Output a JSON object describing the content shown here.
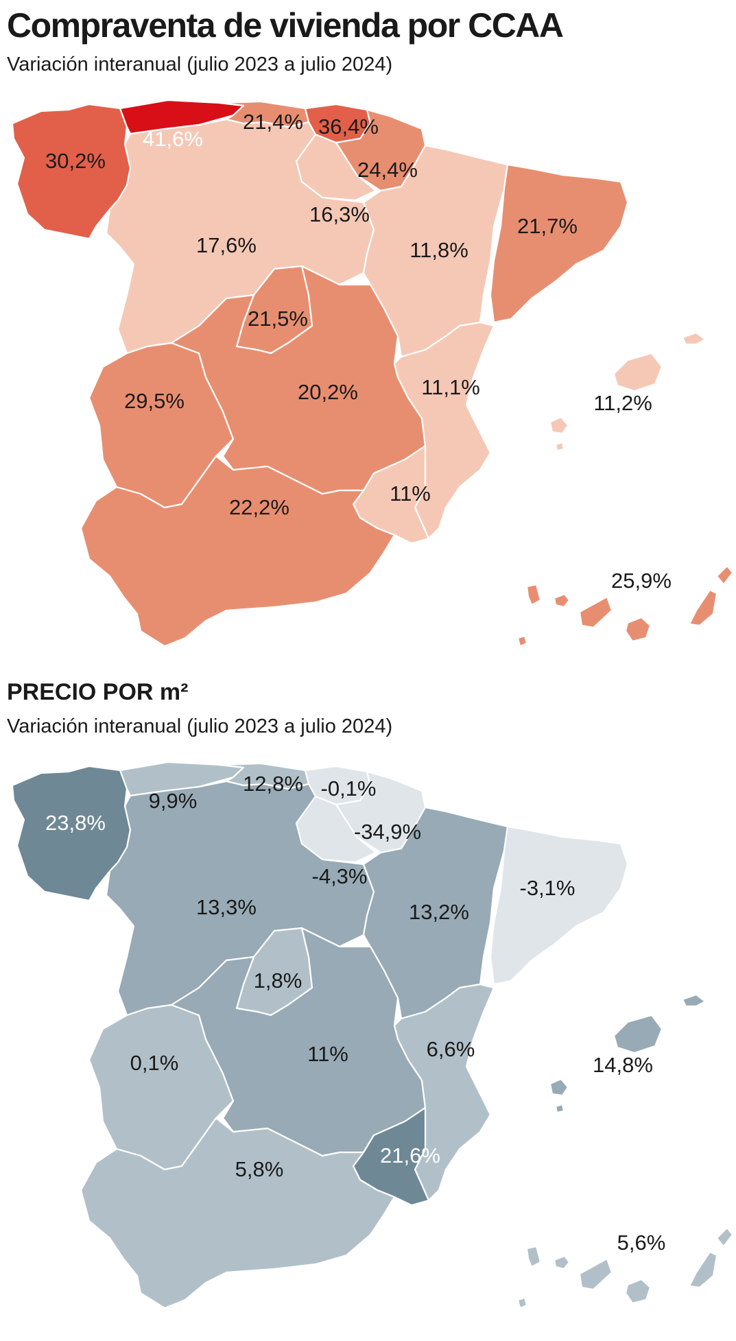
{
  "header": {
    "title": "Compraventa de vivienda por CCAA",
    "subtitle": "Variación interanual (julio 2023 a julio 2024)"
  },
  "section2": {
    "title": "PRECIO POR m²",
    "subtitle": "Variación interanual (julio 2023 a julio 2024)"
  },
  "compraventa": [
    {
      "region": "Galicia",
      "value": "30,2%",
      "color": "#e2604a"
    },
    {
      "region": "Asturias",
      "value": "41,6%",
      "color": "#d80f17"
    },
    {
      "region": "Cantabria",
      "value": "21,4%",
      "color": "#e88e70"
    },
    {
      "region": "País Vasco",
      "value": "36,4%",
      "color": "#e2604a"
    },
    {
      "region": "Navarra",
      "value": "24,4%",
      "color": "#e88e70"
    },
    {
      "region": "La Rioja",
      "value": "16,3%",
      "color": "#f5c8b6"
    },
    {
      "region": "Castilla y León",
      "value": "17,6%",
      "color": "#f5c8b6"
    },
    {
      "region": "Aragón",
      "value": "11,8%",
      "color": "#f5c8b6"
    },
    {
      "region": "Cataluña",
      "value": "21,7%",
      "color": "#e88e70"
    },
    {
      "region": "Madrid",
      "value": "21,5%",
      "color": "#e88e70"
    },
    {
      "region": "Extremadura",
      "value": "29,5%",
      "color": "#e88e70"
    },
    {
      "region": "Castilla-La Mancha",
      "value": "20,2%",
      "color": "#e88e70"
    },
    {
      "region": "Comunidad Valenciana",
      "value": "11,1%",
      "color": "#f5c8b6"
    },
    {
      "region": "Illes Balears",
      "value": "11,2%",
      "color": "#f5c8b6"
    },
    {
      "region": "Murcia",
      "value": "11%",
      "color": "#f5c8b6"
    },
    {
      "region": "Andalucía",
      "value": "22,2%",
      "color": "#e88e70"
    },
    {
      "region": "Canarias",
      "value": "25,9%",
      "color": "#e88e70"
    }
  ],
  "precio": [
    {
      "region": "Galicia",
      "value": "23,8%",
      "color": "#6e8896"
    },
    {
      "region": "Asturias",
      "value": "9,9%",
      "color": "#b1c0c8"
    },
    {
      "region": "Cantabria",
      "value": "12,8%",
      "color": "#b1c0c8"
    },
    {
      "region": "País Vasco",
      "value": "-0,1%",
      "color": "#dfe5e9"
    },
    {
      "region": "Navarra",
      "value": "-34,9%",
      "color": "#dfe5e9"
    },
    {
      "region": "La Rioja",
      "value": "-4,3%",
      "color": "#dfe5e9"
    },
    {
      "region": "Castilla y León",
      "value": "13,3%",
      "color": "#97aab5"
    },
    {
      "region": "Aragón",
      "value": "13,2%",
      "color": "#97aab5"
    },
    {
      "region": "Cataluña",
      "value": "-3,1%",
      "color": "#dfe5e9"
    },
    {
      "region": "Madrid",
      "value": "1,8%",
      "color": "#b1c0c8"
    },
    {
      "region": "Extremadura",
      "value": "0,1%",
      "color": "#b1c0c8"
    },
    {
      "region": "Castilla-La Mancha",
      "value": "11%",
      "color": "#97aab5"
    },
    {
      "region": "Comunidad Valenciana",
      "value": "6,6%",
      "color": "#b1c0c8"
    },
    {
      "region": "Illes Balears",
      "value": "14,8%",
      "color": "#97aab5"
    },
    {
      "region": "Murcia",
      "value": "21,6%",
      "color": "#6e8896"
    },
    {
      "region": "Andalucía",
      "value": "5,8%",
      "color": "#b1c0c8"
    },
    {
      "region": "Canarias",
      "value": "5,6%",
      "color": "#b1c0c8"
    }
  ]
}
